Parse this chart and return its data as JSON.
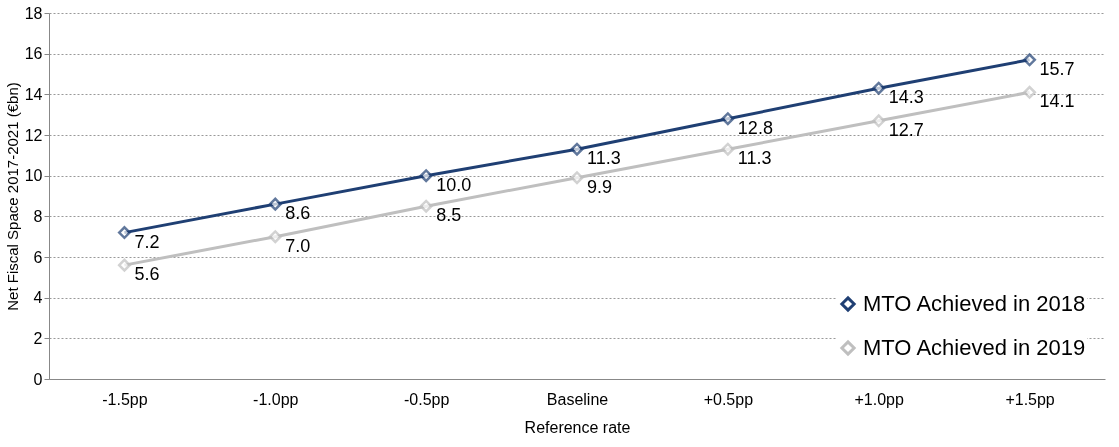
{
  "chart_data": {
    "type": "line",
    "xlabel": "Reference rate",
    "ylabel": "Net Fiscal Space 2017-2021 (€bn)",
    "categories": [
      "-1.5pp",
      "-1.0pp",
      "-0.5pp",
      "Baseline",
      "+0.5pp",
      "+1.0pp",
      "+1.5pp"
    ],
    "series": [
      {
        "name": "MTO Achieved in 2018",
        "color": "#1f3f73",
        "values": [
          7.2,
          8.6,
          10.0,
          11.3,
          12.8,
          14.3,
          15.7
        ],
        "value_labels": [
          "7.2",
          "8.6",
          "10.0",
          "11.3",
          "12.8",
          "14.3",
          "15.7"
        ]
      },
      {
        "name": "MTO Achieved in 2019",
        "color": "#bfbfbf",
        "values": [
          5.6,
          7.0,
          8.5,
          9.9,
          11.3,
          12.7,
          14.1
        ],
        "value_labels": [
          "5.6",
          "7.0",
          "8.5",
          "9.9",
          "11.3",
          "12.7",
          "14.1"
        ]
      }
    ],
    "ylim": [
      0,
      18
    ],
    "yticks": [
      0,
      2,
      4,
      6,
      8,
      10,
      12,
      14,
      16,
      18
    ],
    "grid": "y",
    "legend": "bottom right",
    "marker": "diamond",
    "line_style": "solid"
  }
}
